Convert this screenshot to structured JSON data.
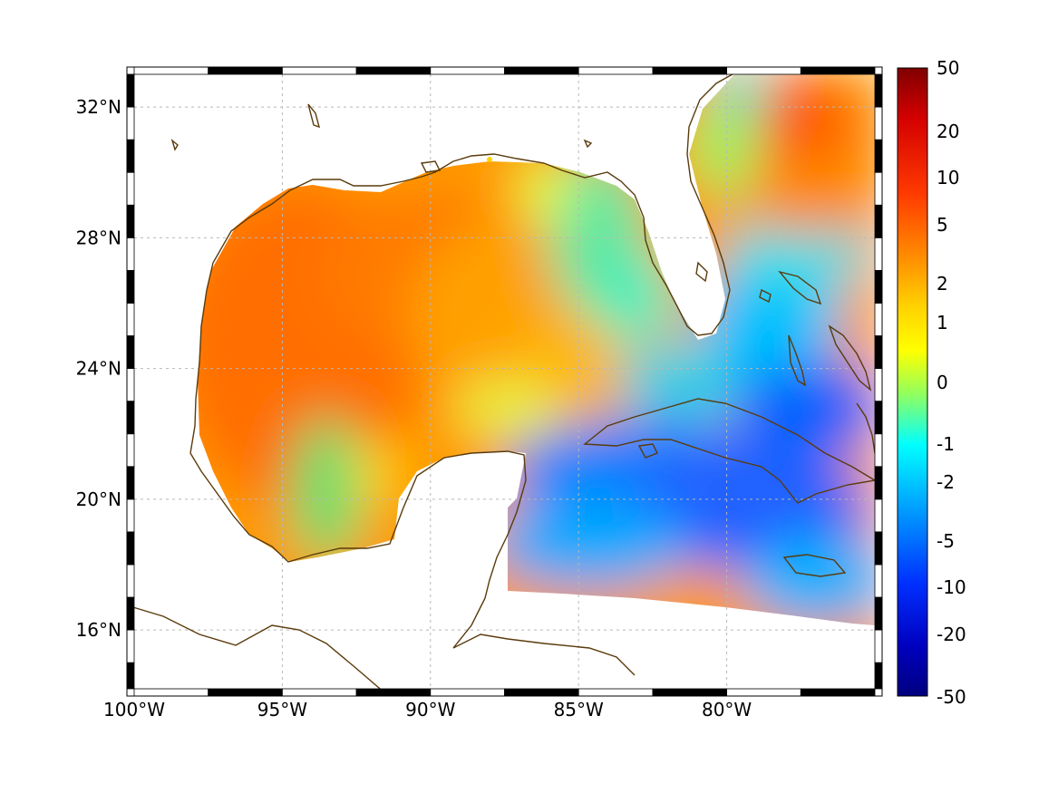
{
  "map": {
    "lon_range": [
      -100,
      -75
    ],
    "lat_range": [
      14.2,
      33
    ],
    "grid": true,
    "x_ticks": [
      {
        "value": -100,
        "label": "100°W"
      },
      {
        "value": -95,
        "label": "95°W"
      },
      {
        "value": -90,
        "label": "90°W"
      },
      {
        "value": -85,
        "label": "85°W"
      },
      {
        "value": -80,
        "label": "80°W"
      }
    ],
    "y_ticks": [
      {
        "value": 16,
        "label": "16°N"
      },
      {
        "value": 20,
        "label": "20°N"
      },
      {
        "value": 24,
        "label": "24°N"
      },
      {
        "value": 28,
        "label": "28°N"
      },
      {
        "value": 32,
        "label": "32°N"
      }
    ],
    "coast_color": "#5a3b0c",
    "land_color": "#ffffff"
  },
  "colorbar": {
    "labels": [
      "50",
      "20",
      "10",
      "5",
      "2",
      "1",
      "0",
      "-1",
      "-2",
      "-5",
      "-10",
      "-20",
      "-50"
    ],
    "colors": [
      "#800000",
      "#ff0000",
      "#ff8000",
      "#ffff00",
      "#00ffff",
      "#0000ff",
      "#000080"
    ]
  }
}
